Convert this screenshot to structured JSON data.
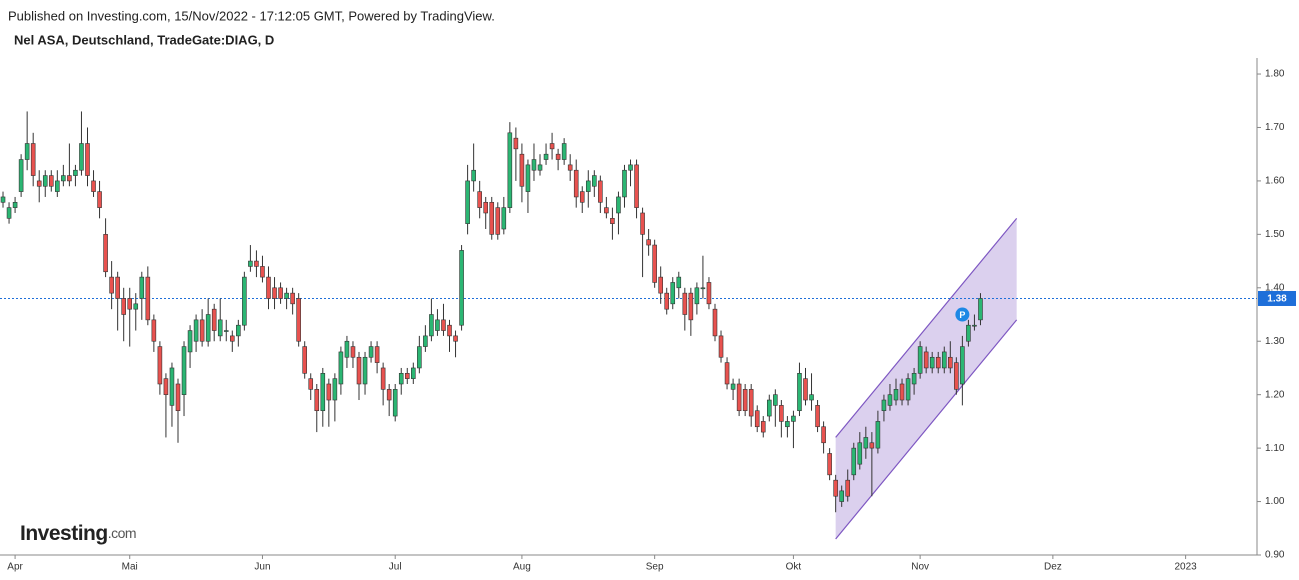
{
  "chart_data": {
    "type": "candlestick",
    "subtitle": "Published on Investing.com, 15/Nov/2022 - 17:12:05 GMT, Powered by TradingView.",
    "title": "Nel ASA, Deutschland, TradeGate:DIAG, D",
    "watermark": {
      "name": "Investing",
      "suffix": ".com"
    },
    "categories": [
      null,
      null,
      "Apr",
      null,
      null,
      null,
      null,
      null,
      null,
      null,
      null,
      null,
      null,
      null,
      null,
      null,
      null,
      null,
      null,
      null,
      null,
      "Mai",
      null,
      null,
      null,
      null,
      null,
      null,
      null,
      null,
      null,
      null,
      null,
      null,
      null,
      null,
      null,
      null,
      null,
      null,
      null,
      null,
      null,
      "Jun",
      null,
      null,
      null,
      null,
      null,
      null,
      null,
      null,
      null,
      null,
      null,
      null,
      null,
      null,
      null,
      null,
      null,
      null,
      null,
      null,
      null,
      "Jul",
      null,
      null,
      null,
      null,
      null,
      null,
      null,
      null,
      null,
      null,
      null,
      null,
      null,
      null,
      null,
      null,
      null,
      null,
      null,
      null,
      "Aug",
      null,
      null,
      null,
      null,
      null,
      null,
      null,
      null,
      null,
      null,
      null,
      null,
      null,
      null,
      null,
      null,
      null,
      null,
      null,
      null,
      null,
      "Sep",
      null,
      null,
      null,
      null,
      null,
      null,
      null,
      null,
      null,
      null,
      null,
      null,
      null,
      null,
      null,
      null,
      null,
      null,
      null,
      null,
      null,
      null,
      "Okt",
      null,
      null,
      null,
      null,
      null,
      null,
      null,
      null,
      null,
      null,
      null,
      null,
      null,
      null,
      null,
      null,
      null,
      null,
      null,
      null,
      "Nov",
      null,
      null,
      null,
      null,
      null,
      null,
      null,
      null,
      null,
      null,
      null,
      null,
      null,
      null,
      null,
      null,
      null,
      null,
      null,
      null,
      null,
      "Dez",
      null,
      null,
      null,
      null,
      null,
      null,
      null,
      null,
      null,
      null,
      null,
      null,
      null,
      null,
      null,
      null,
      null,
      null,
      null,
      null,
      null,
      "2023",
      null,
      null,
      null,
      null,
      null,
      null,
      null,
      null,
      null,
      null,
      null
    ],
    "open": [
      1.56,
      1.53,
      1.55,
      1.58,
      1.64,
      1.67,
      1.6,
      1.59,
      1.61,
      1.58,
      1.6,
      1.61,
      1.61,
      1.62,
      1.67,
      1.6,
      1.58,
      1.5,
      1.42,
      1.42,
      1.38,
      1.38,
      1.36,
      1.38,
      1.42,
      1.34,
      1.29,
      1.23,
      1.18,
      1.22,
      1.2,
      1.28,
      1.3,
      1.34,
      1.3,
      1.36,
      1.31,
      1.32,
      1.31,
      1.31,
      1.33,
      1.44,
      1.45,
      1.44,
      1.42,
      1.4,
      1.4,
      1.38,
      1.39,
      1.38,
      1.29,
      1.23,
      1.21,
      1.17,
      1.22,
      1.19,
      1.22,
      1.27,
      1.29,
      1.27,
      1.22,
      1.27,
      1.29,
      1.25,
      1.21,
      1.16,
      1.22,
      1.24,
      1.23,
      1.25,
      1.29,
      1.31,
      1.32,
      1.34,
      1.33,
      1.31,
      1.33,
      1.52,
      1.6,
      1.58,
      1.56,
      1.56,
      1.55,
      1.51,
      1.55,
      1.68,
      1.65,
      1.58,
      1.62,
      1.62,
      1.64,
      1.67,
      1.65,
      1.64,
      1.63,
      1.62,
      1.58,
      1.58,
      1.59,
      1.6,
      1.55,
      1.53,
      1.54,
      1.57,
      1.62,
      1.63,
      1.54,
      1.49,
      1.48,
      1.42,
      1.39,
      1.37,
      1.4,
      1.39,
      1.39,
      1.37,
      1.4,
      1.41,
      1.36,
      1.31,
      1.26,
      1.21,
      1.22,
      1.21,
      1.21,
      1.17,
      1.15,
      1.16,
      1.18,
      1.18,
      1.14,
      1.15,
      1.17,
      1.23,
      1.19,
      1.18,
      1.14,
      1.09,
      1.04,
      1.0,
      1.04,
      1.05,
      1.07,
      1.1,
      1.11,
      1.1,
      1.17,
      1.18,
      1.19,
      1.22,
      1.19,
      1.22,
      1.24,
      1.28,
      1.25,
      1.27,
      1.25,
      1.27,
      1.26,
      1.22,
      1.3,
      1.33,
      1.34,
      null,
      null,
      null,
      null,
      null,
      null,
      null,
      null,
      null,
      null,
      null,
      null,
      null,
      null,
      null,
      null,
      null,
      null,
      null,
      null,
      null,
      null,
      null,
      null,
      null,
      null,
      null,
      null,
      null,
      null,
      null,
      null,
      null,
      null,
      null,
      null,
      null,
      null,
      null,
      null,
      null,
      null,
      null,
      null,
      null
    ],
    "high": [
      1.58,
      1.56,
      1.57,
      1.65,
      1.73,
      1.69,
      1.62,
      1.62,
      1.62,
      1.62,
      1.63,
      1.67,
      1.63,
      1.73,
      1.7,
      1.62,
      1.6,
      1.53,
      1.45,
      1.43,
      1.4,
      1.4,
      1.39,
      1.43,
      1.44,
      1.35,
      1.3,
      1.24,
      1.26,
      1.23,
      1.3,
      1.33,
      1.35,
      1.36,
      1.38,
      1.37,
      1.38,
      1.34,
      1.32,
      1.34,
      1.43,
      1.48,
      1.47,
      1.46,
      1.44,
      1.42,
      1.41,
      1.4,
      1.4,
      1.39,
      1.3,
      1.24,
      1.22,
      1.25,
      1.23,
      1.24,
      1.29,
      1.31,
      1.3,
      1.28,
      1.28,
      1.3,
      1.3,
      1.26,
      1.22,
      1.22,
      1.25,
      1.25,
      1.26,
      1.31,
      1.33,
      1.38,
      1.36,
      1.37,
      1.34,
      1.32,
      1.48,
      1.63,
      1.67,
      1.6,
      1.57,
      1.57,
      1.56,
      1.57,
      1.71,
      1.7,
      1.67,
      1.64,
      1.67,
      1.65,
      1.67,
      1.69,
      1.66,
      1.68,
      1.65,
      1.64,
      1.59,
      1.62,
      1.62,
      1.61,
      1.57,
      1.55,
      1.58,
      1.63,
      1.64,
      1.64,
      1.55,
      1.51,
      1.49,
      1.44,
      1.4,
      1.42,
      1.43,
      1.4,
      1.4,
      1.41,
      1.46,
      1.42,
      1.37,
      1.32,
      1.27,
      1.23,
      1.23,
      1.22,
      1.22,
      1.18,
      1.16,
      1.2,
      1.21,
      1.19,
      1.16,
      1.17,
      1.26,
      1.25,
      1.24,
      1.19,
      1.15,
      1.1,
      1.05,
      1.03,
      1.06,
      1.11,
      1.13,
      1.14,
      1.13,
      1.17,
      1.2,
      1.22,
      1.23,
      1.23,
      1.24,
      1.25,
      1.3,
      1.29,
      1.28,
      1.28,
      1.29,
      1.3,
      1.27,
      1.31,
      1.34,
      1.35,
      1.39,
      null,
      null,
      null,
      null,
      null,
      null,
      null,
      null,
      null,
      null,
      null,
      null,
      null,
      null,
      null,
      null,
      null,
      null,
      null,
      null,
      null,
      null,
      null,
      null,
      null,
      null,
      null,
      null,
      null,
      null,
      null,
      null,
      null,
      null,
      null,
      null,
      null,
      null,
      null,
      null,
      null,
      null,
      null,
      null,
      null
    ],
    "low": [
      1.55,
      1.52,
      1.54,
      1.57,
      1.62,
      1.59,
      1.56,
      1.57,
      1.58,
      1.57,
      1.59,
      1.59,
      1.59,
      1.61,
      1.59,
      1.57,
      1.53,
      1.42,
      1.36,
      1.32,
      1.3,
      1.29,
      1.32,
      1.34,
      1.33,
      1.28,
      1.2,
      1.12,
      1.14,
      1.11,
      1.16,
      1.25,
      1.28,
      1.29,
      1.29,
      1.3,
      1.3,
      1.3,
      1.28,
      1.29,
      1.32,
      1.43,
      1.42,
      1.41,
      1.36,
      1.36,
      1.37,
      1.36,
      1.35,
      1.29,
      1.23,
      1.19,
      1.13,
      1.14,
      1.14,
      1.15,
      1.2,
      1.25,
      1.25,
      1.19,
      1.2,
      1.26,
      1.24,
      1.18,
      1.16,
      1.15,
      1.2,
      1.22,
      1.22,
      1.24,
      1.28,
      1.3,
      1.31,
      1.31,
      1.28,
      1.27,
      1.32,
      1.5,
      1.58,
      1.53,
      1.51,
      1.49,
      1.49,
      1.5,
      1.54,
      1.6,
      1.56,
      1.54,
      1.6,
      1.61,
      1.63,
      1.64,
      1.62,
      1.63,
      1.6,
      1.55,
      1.54,
      1.55,
      1.57,
      1.54,
      1.53,
      1.49,
      1.5,
      1.55,
      1.59,
      1.53,
      1.42,
      1.46,
      1.4,
      1.37,
      1.35,
      1.36,
      1.38,
      1.32,
      1.31,
      1.35,
      1.38,
      1.36,
      1.3,
      1.26,
      1.21,
      1.19,
      1.16,
      1.16,
      1.14,
      1.13,
      1.12,
      1.15,
      1.14,
      1.12,
      1.12,
      1.1,
      1.16,
      1.18,
      1.17,
      1.13,
      1.09,
      1.04,
      0.98,
      0.99,
      1.0,
      1.04,
      1.06,
      1.08,
      1.01,
      1.09,
      1.15,
      1.17,
      1.18,
      1.18,
      1.18,
      1.2,
      1.23,
      1.24,
      1.24,
      1.24,
      1.24,
      1.24,
      1.2,
      1.18,
      1.29,
      1.32,
      1.33,
      null,
      null,
      null,
      null,
      null,
      null,
      null,
      null,
      null,
      null,
      null,
      null,
      null,
      null,
      null,
      null,
      null,
      null,
      null,
      null,
      null,
      null,
      null,
      null,
      null,
      null,
      null,
      null,
      null,
      null,
      null,
      null,
      null,
      null,
      null,
      null,
      null,
      null,
      null,
      null,
      null,
      null,
      null,
      null,
      null
    ],
    "close": [
      1.57,
      1.55,
      1.56,
      1.64,
      1.67,
      1.61,
      1.59,
      1.61,
      1.59,
      1.6,
      1.61,
      1.6,
      1.62,
      1.67,
      1.61,
      1.58,
      1.55,
      1.43,
      1.39,
      1.38,
      1.35,
      1.36,
      1.37,
      1.42,
      1.34,
      1.3,
      1.22,
      1.2,
      1.25,
      1.17,
      1.29,
      1.32,
      1.34,
      1.3,
      1.35,
      1.32,
      1.34,
      1.32,
      1.3,
      1.33,
      1.42,
      1.45,
      1.44,
      1.42,
      1.38,
      1.38,
      1.38,
      1.39,
      1.37,
      1.3,
      1.24,
      1.21,
      1.17,
      1.24,
      1.19,
      1.23,
      1.28,
      1.3,
      1.27,
      1.22,
      1.27,
      1.29,
      1.26,
      1.21,
      1.19,
      1.21,
      1.24,
      1.23,
      1.25,
      1.29,
      1.31,
      1.35,
      1.34,
      1.32,
      1.31,
      1.3,
      1.47,
      1.6,
      1.62,
      1.55,
      1.54,
      1.5,
      1.5,
      1.55,
      1.69,
      1.66,
      1.59,
      1.63,
      1.64,
      1.63,
      1.65,
      1.66,
      1.64,
      1.67,
      1.62,
      1.57,
      1.56,
      1.6,
      1.61,
      1.56,
      1.54,
      1.52,
      1.57,
      1.62,
      1.63,
      1.55,
      1.5,
      1.48,
      1.41,
      1.39,
      1.36,
      1.41,
      1.42,
      1.35,
      1.34,
      1.4,
      1.4,
      1.37,
      1.31,
      1.27,
      1.22,
      1.22,
      1.17,
      1.17,
      1.16,
      1.14,
      1.13,
      1.19,
      1.2,
      1.15,
      1.15,
      1.16,
      1.24,
      1.19,
      1.2,
      1.14,
      1.11,
      1.05,
      1.01,
      1.02,
      1.01,
      1.1,
      1.11,
      1.12,
      1.1,
      1.15,
      1.19,
      1.2,
      1.21,
      1.19,
      1.23,
      1.24,
      1.29,
      1.25,
      1.27,
      1.25,
      1.28,
      1.25,
      1.21,
      1.29,
      1.33,
      1.33,
      1.38,
      null,
      null,
      null,
      null,
      null,
      null,
      null,
      null,
      null,
      null,
      null,
      null,
      null,
      null,
      null,
      null,
      null,
      null,
      null,
      null,
      null,
      null,
      null,
      null,
      null,
      null,
      null,
      null,
      null,
      null,
      null,
      null,
      null,
      null,
      null,
      null,
      null,
      null,
      null,
      null,
      null,
      null,
      null,
      null,
      null
    ],
    "up_color": "#2bb673",
    "down_color": "#e8524f",
    "wick_color": "#333333",
    "ylim": [
      0.9,
      1.83
    ],
    "yticks": [
      {
        "value": 0.9,
        "label": "0.90"
      },
      {
        "value": 1.0,
        "label": "1.00"
      },
      {
        "value": 1.1,
        "label": "1.10"
      },
      {
        "value": 1.2,
        "label": "1.20"
      },
      {
        "value": 1.3,
        "label": "1.30"
      },
      {
        "value": 1.4,
        "label": "1.40"
      },
      {
        "value": 1.5,
        "label": "1.50"
      },
      {
        "value": 1.6,
        "label": "1.60"
      },
      {
        "value": 1.7,
        "label": "1.70"
      },
      {
        "value": 1.8,
        "label": "1.80"
      }
    ],
    "last_price": {
      "value": 1.38,
      "color": "#1e6fd9"
    },
    "channel": {
      "x": [
        138,
        168
      ],
      "upper": [
        1.12,
        1.53
      ],
      "lower": [
        0.93,
        1.34
      ],
      "color": "#7e57c2"
    },
    "events": [
      {
        "label": "P",
        "index": 159,
        "value": 1.35,
        "color": "#1e88e5"
      }
    ]
  }
}
